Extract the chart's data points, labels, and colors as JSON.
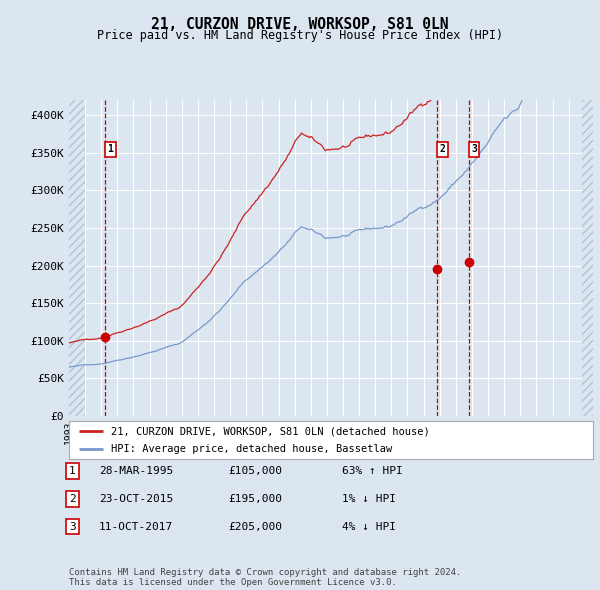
{
  "title": "21, CURZON DRIVE, WORKSOP, S81 0LN",
  "subtitle": "Price paid vs. HM Land Registry's House Price Index (HPI)",
  "xlim_start": 1993.0,
  "xlim_end": 2025.5,
  "ylim_min": 0,
  "ylim_max": 420000,
  "yticks": [
    0,
    50000,
    100000,
    150000,
    200000,
    250000,
    300000,
    350000,
    400000
  ],
  "ytick_labels": [
    "£0",
    "£50K",
    "£100K",
    "£150K",
    "£200K",
    "£250K",
    "£300K",
    "£350K",
    "£400K"
  ],
  "bg_color": "#dce6f0",
  "grid_color": "#ffffff",
  "red_line_color": "#cc2222",
  "blue_line_color": "#7799cc",
  "sale1_x": 1995.24,
  "sale1_y": 105000,
  "sale2_x": 2015.82,
  "sale2_y": 195000,
  "sale3_x": 2017.79,
  "sale3_y": 205000,
  "legend_line1": "21, CURZON DRIVE, WORKSOP, S81 0LN (detached house)",
  "legend_line2": "HPI: Average price, detached house, Bassetlaw",
  "table_rows": [
    [
      "1",
      "28-MAR-1995",
      "£105,000",
      "63% ↑ HPI"
    ],
    [
      "2",
      "23-OCT-2015",
      "£195,000",
      "1% ↓ HPI"
    ],
    [
      "3",
      "11-OCT-2017",
      "£205,000",
      "4% ↓ HPI"
    ]
  ],
  "footnote": "Contains HM Land Registry data © Crown copyright and database right 2024.\nThis data is licensed under the Open Government Licence v3.0."
}
